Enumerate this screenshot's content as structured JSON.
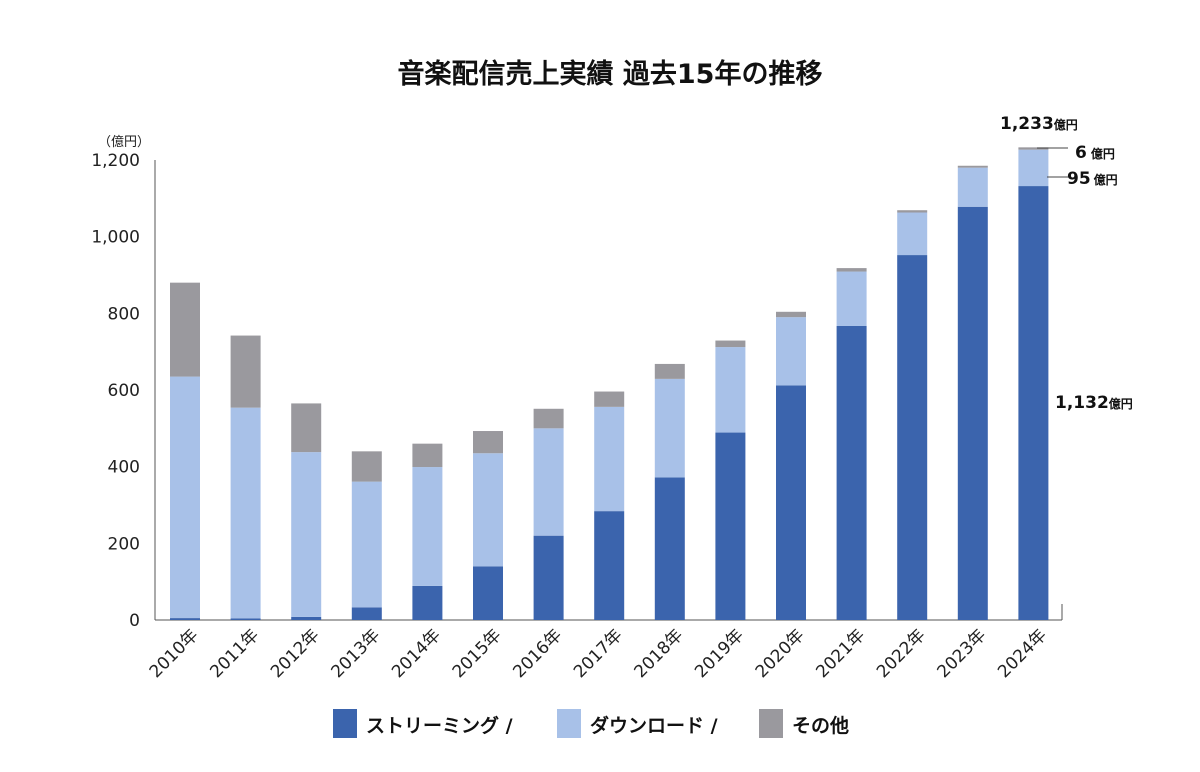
{
  "chart_data": {
    "type": "bar",
    "stacked": true,
    "title": "音楽配信売上実績 過去15年の推移",
    "unit_label": "（億円）",
    "ylim": [
      0,
      1200
    ],
    "yticks": [
      "0",
      "200",
      "400",
      "600",
      "800",
      "1,000",
      "1,200"
    ],
    "ytick_values": [
      0,
      200,
      400,
      600,
      800,
      1000,
      1200
    ],
    "categories": [
      "2010年",
      "2011年",
      "2012年",
      "2013年",
      "2014年",
      "2015年",
      "2016年",
      "2017年",
      "2018年",
      "2019年",
      "2020年",
      "2021年",
      "2022年",
      "2023年",
      "2024年"
    ],
    "series": [
      {
        "name": "ストリーミング /",
        "color": "#3b64ad",
        "values": [
          5,
          4,
          8,
          33,
          89,
          140,
          220,
          284,
          372,
          489,
          612,
          767,
          952,
          1078,
          1132
        ]
      },
      {
        "name": "ダウンロード /",
        "color": "#a8c1e8",
        "values": [
          630,
          550,
          430,
          328,
          310,
          295,
          280,
          272,
          257,
          223,
          178,
          142,
          111,
          102,
          95
        ]
      },
      {
        "name": "その他",
        "color": "#9a999e",
        "values": [
          245,
          188,
          127,
          79,
          61,
          58,
          51,
          40,
          39,
          17,
          14,
          9,
          6,
          5,
          6
        ]
      }
    ],
    "annotations": {
      "total": {
        "value": "1,233",
        "unit": "億円"
      },
      "other": {
        "value": "6",
        "unit": "億円"
      },
      "download": {
        "value": "95",
        "unit": "億円"
      },
      "streaming": {
        "value": "1,132",
        "unit": "億円"
      }
    },
    "legend_position": "bottom",
    "grid": false
  }
}
